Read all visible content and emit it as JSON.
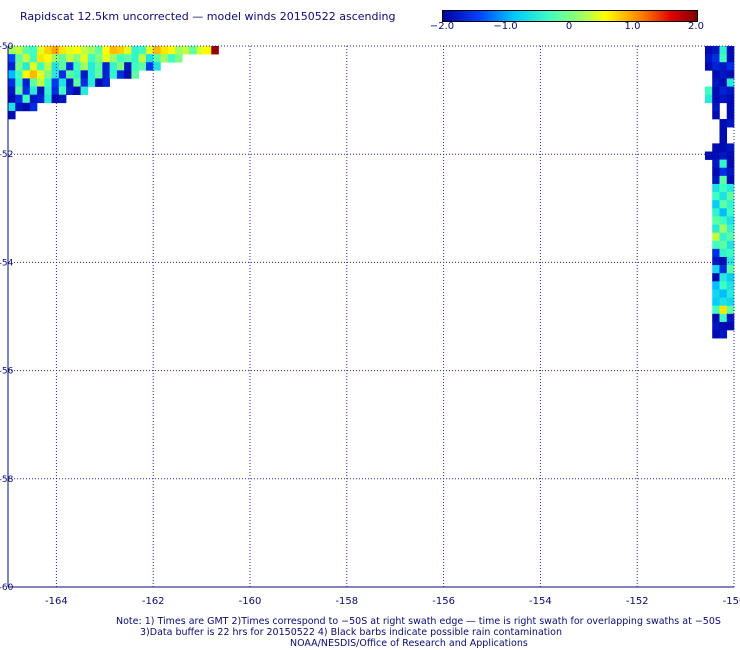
{
  "title": "Rapidscat 12.5km uncorrected — model winds 20150522 ascending",
  "colorbar": {
    "ticks": [
      "−2.0",
      "−1.0",
      "0",
      "1.0",
      "2.0"
    ],
    "tick_values": [
      -2.0,
      -1.0,
      0,
      1.0,
      2.0
    ],
    "range": [
      -2.0,
      2.0
    ]
  },
  "notes": {
    "line1": "Note: 1) Times are GMT 2)Times correspond to −50S at right swath edge — time is right swath for overlapping swaths at −50S",
    "line2": "3)Data buffer is 22 hrs for 20150522 4) Black barbs indicate possible rain contamination",
    "line3": "NOAA/NESDIS/Office of Research and Applications"
  },
  "chart_data": {
    "type": "heatmap",
    "title": "Rapidscat 12.5km uncorrected — model winds 20150522 ascending",
    "xlim": [
      -165,
      -150
    ],
    "ylim": [
      -60,
      -50
    ],
    "x_ticks": [
      -164,
      -162,
      -160,
      -158,
      -156,
      -154,
      -152,
      -150
    ],
    "x_tick_labels": [
      "-164",
      "-162",
      "-160",
      "-158",
      "-156",
      "-154",
      "-152",
      "-150"
    ],
    "y_ticks": [
      -50,
      -52,
      -54,
      -56,
      -58,
      -60
    ],
    "y_tick_labels": [
      "-50",
      "-52",
      "-54",
      "-56",
      "-58",
      "-60"
    ],
    "grid": true,
    "color_scale": {
      "min": -2.0,
      "max": 2.0,
      "colors": [
        "#0000a0",
        "#0040ff",
        "#00c8ff",
        "#40ffc0",
        "#ffff00",
        "#ff8000",
        "#c00000",
        "#800000"
      ]
    },
    "cell_size_deg": [
      0.15,
      0.15
    ],
    "regions": [
      {
        "name": "top-left swath",
        "lon_start": -165.0,
        "lat_top": -50.0,
        "rows": [
          [
            0.0,
            0.1,
            -0.2,
            -0.3,
            0.2,
            0.5,
            0.7,
            0.4,
            0.2,
            0.3,
            0.1,
            0.0,
            -0.2,
            0.3,
            0.6,
            0.5,
            0.2,
            -0.4,
            -0.3,
            0.2,
            0.6,
            0.4,
            0.3,
            0.0,
            0.1,
            -0.2,
            0.2,
            0.3,
            1.8
          ],
          [
            -1.4,
            -0.2,
            0.1,
            -0.3,
            0.4,
            0.3,
            0.0,
            -0.2,
            0.1,
            -0.1,
            0.2,
            -0.3,
            -0.1,
            0.2,
            0.0,
            -0.3,
            -0.2,
            -0.4,
            0.1,
            -0.6,
            -0.2,
            0.0,
            -0.3,
            -0.1
          ],
          [
            -1.7,
            -0.1,
            -0.5,
            0.2,
            -0.3,
            0.1,
            -0.6,
            -0.2,
            -1.6,
            -0.3,
            0.0,
            -0.5,
            -0.2,
            -1.7,
            -0.4,
            -0.1,
            -1.8,
            -0.3,
            -0.2,
            -1.5,
            -0.6
          ],
          [
            -0.9,
            -0.3,
            0.3,
            0.6,
            0.2,
            -0.1,
            -0.5,
            -1.6,
            -0.2,
            -0.4,
            -1.8,
            -0.5,
            -0.2,
            -1.7,
            -0.4,
            -1.6,
            -1.9,
            -0.2
          ],
          [
            -1.6,
            -0.4,
            -1.7,
            -0.2,
            0.1,
            -0.3,
            -1.5,
            -0.6,
            -1.8,
            -0.2,
            -1.6,
            -0.5,
            -1.9,
            -1.7
          ],
          [
            -1.8,
            -0.2,
            -1.6,
            -0.5,
            -1.8,
            -0.4,
            -1.6,
            -0.3,
            -1.7,
            -1.9,
            -0.5
          ],
          [
            -1.9,
            -1.6,
            -0.3,
            -1.8,
            -1.7,
            -0.5,
            -1.9,
            -1.8
          ],
          [
            -0.6,
            -1.8,
            -1.9,
            -1.6
          ],
          [
            -1.9
          ]
        ]
      },
      {
        "name": "right swath",
        "lon_start": -150.6,
        "lat_top": -50.0,
        "rows": [
          [
            -1.9,
            -1.8,
            -0.4,
            -1.9
          ],
          [
            -1.8,
            -1.6,
            -0.3,
            -1.9
          ],
          [
            -1.9,
            -1.7,
            -1.8,
            -1.6
          ],
          [
            null,
            -1.9,
            -1.8,
            -1.9
          ],
          [
            null,
            -1.8,
            -1.9,
            -0.5
          ],
          [
            -0.3,
            -1.9,
            -1.7,
            -1.8
          ],
          [
            -0.5,
            -1.9,
            -1.8,
            -1.9
          ],
          [
            null,
            -1.8,
            null,
            -1.9
          ],
          [
            null,
            -1.9,
            null,
            -1.9
          ],
          [
            null,
            null,
            -1.9,
            -1.8
          ],
          [
            null,
            null,
            -1.9,
            null
          ],
          [
            null,
            null,
            -1.9,
            null
          ],
          [
            null,
            -1.9,
            -1.9,
            -1.8
          ],
          [
            -1.9,
            -1.9,
            -1.8,
            -1.9
          ],
          [
            null,
            -1.8,
            -0.4,
            -1.9
          ],
          [
            null,
            -1.9,
            -1.6,
            -1.8
          ],
          [
            null,
            -1.8,
            -0.2,
            -1.9
          ],
          [
            null,
            -0.6,
            -0.3,
            -0.5
          ],
          [
            null,
            -0.3,
            -0.6,
            -0.2
          ],
          [
            null,
            -0.8,
            -0.2,
            -0.4
          ],
          [
            null,
            -0.4,
            -0.9,
            -0.3
          ],
          [
            null,
            -0.2,
            -0.3,
            -0.6
          ],
          [
            null,
            -0.5,
            0.0,
            -0.4
          ],
          [
            null,
            0.1,
            -0.4,
            -0.2
          ],
          [
            null,
            -0.3,
            -0.2,
            -0.6
          ],
          [
            null,
            -1.6,
            -0.4,
            -0.3
          ],
          [
            null,
            -1.8,
            -1.9,
            -0.5
          ],
          [
            null,
            -0.7,
            -1.6,
            -0.2
          ],
          [
            null,
            -1.9,
            -0.5,
            -0.8
          ],
          [
            null,
            -0.9,
            -0.3,
            -0.6
          ],
          [
            null,
            -0.7,
            -0.9,
            -0.5
          ],
          [
            null,
            -0.8,
            -0.6,
            -0.7
          ],
          [
            null,
            -0.3,
            0.4,
            -0.2
          ],
          [
            null,
            -1.9,
            -0.3,
            -1.8
          ],
          [
            null,
            -1.8,
            -1.9,
            -1.9
          ],
          [
            null,
            -1.9,
            -1.8,
            null
          ]
        ]
      }
    ]
  }
}
